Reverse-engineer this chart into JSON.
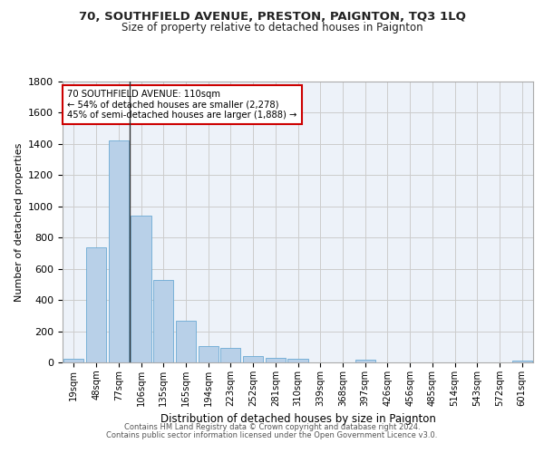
{
  "title1": "70, SOUTHFIELD AVENUE, PRESTON, PAIGNTON, TQ3 1LQ",
  "title2": "Size of property relative to detached houses in Paignton",
  "xlabel": "Distribution of detached houses by size in Paignton",
  "ylabel": "Number of detached properties",
  "categories": [
    "19sqm",
    "48sqm",
    "77sqm",
    "106sqm",
    "135sqm",
    "165sqm",
    "194sqm",
    "223sqm",
    "252sqm",
    "281sqm",
    "310sqm",
    "339sqm",
    "368sqm",
    "397sqm",
    "426sqm",
    "456sqm",
    "485sqm",
    "514sqm",
    "543sqm",
    "572sqm",
    "601sqm"
  ],
  "values": [
    22,
    740,
    1420,
    940,
    530,
    265,
    105,
    92,
    40,
    28,
    25,
    0,
    0,
    15,
    0,
    0,
    0,
    0,
    0,
    0,
    12
  ],
  "bar_color": "#b8d0e8",
  "bar_edge_color": "#6aaad4",
  "vline_x": 2.5,
  "vline_color": "#333333",
  "annotation_text": "70 SOUTHFIELD AVENUE: 110sqm\n← 54% of detached houses are smaller (2,278)\n45% of semi-detached houses are larger (1,888) →",
  "annotation_box_color": "#ffffff",
  "annotation_box_edge_color": "#cc0000",
  "ylim": [
    0,
    1800
  ],
  "yticks": [
    0,
    200,
    400,
    600,
    800,
    1000,
    1200,
    1400,
    1600,
    1800
  ],
  "grid_color": "#cccccc",
  "bg_color": "#edf2f9",
  "footer1": "Contains HM Land Registry data © Crown copyright and database right 2024.",
  "footer2": "Contains public sector information licensed under the Open Government Licence v3.0."
}
